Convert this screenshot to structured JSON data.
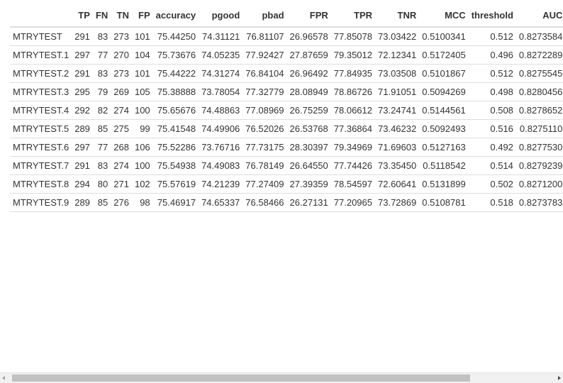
{
  "table": {
    "columns": [
      "",
      "TP",
      "FN",
      "TN",
      "FP",
      "accuracy",
      "pgood",
      "pbad",
      "FPR",
      "TPR",
      "TNR",
      "MCC",
      "threshold",
      "AUC"
    ],
    "rows": [
      {
        "name": "MTRYTEST",
        "TP": "291",
        "FN": "83",
        "TN": "273",
        "FP": "101",
        "accuracy": "75.44250",
        "pgood": "74.31121",
        "pbad": "76.81107",
        "FPR": "26.96578",
        "TPR": "77.85078",
        "TNR": "73.03422",
        "MCC": "0.5100341",
        "threshold": "0.512",
        "AUC": "0.8273584"
      },
      {
        "name": "MTRYTEST.1",
        "TP": "297",
        "FN": "77",
        "TN": "270",
        "FP": "104",
        "accuracy": "75.73676",
        "pgood": "74.05235",
        "pbad": "77.92427",
        "FPR": "27.87659",
        "TPR": "79.35012",
        "TNR": "72.12341",
        "MCC": "0.5172405",
        "threshold": "0.496",
        "AUC": "0.8272289"
      },
      {
        "name": "MTRYTEST.2",
        "TP": "291",
        "FN": "83",
        "TN": "273",
        "FP": "101",
        "accuracy": "75.44222",
        "pgood": "74.31274",
        "pbad": "76.84104",
        "FPR": "26.96492",
        "TPR": "77.84935",
        "TNR": "73.03508",
        "MCC": "0.5101867",
        "threshold": "0.512",
        "AUC": "0.8275545"
      },
      {
        "name": "MTRYTEST.3",
        "TP": "295",
        "FN": "79",
        "TN": "269",
        "FP": "105",
        "accuracy": "75.38888",
        "pgood": "73.78054",
        "pbad": "77.32779",
        "FPR": "28.08949",
        "TPR": "78.86726",
        "TNR": "71.91051",
        "MCC": "0.5094269",
        "threshold": "0.498",
        "AUC": "0.8280456"
      },
      {
        "name": "MTRYTEST.4",
        "TP": "292",
        "FN": "82",
        "TN": "274",
        "FP": "100",
        "accuracy": "75.65676",
        "pgood": "74.48863",
        "pbad": "77.08969",
        "FPR": "26.75259",
        "TPR": "78.06612",
        "TNR": "73.24741",
        "MCC": "0.5144561",
        "threshold": "0.508",
        "AUC": "0.8278652"
      },
      {
        "name": "MTRYTEST.5",
        "TP": "289",
        "FN": "85",
        "TN": "275",
        "FP": "99",
        "accuracy": "75.41548",
        "pgood": "74.49906",
        "pbad": "76.52026",
        "FPR": "26.53768",
        "TPR": "77.36864",
        "TNR": "73.46232",
        "MCC": "0.5092493",
        "threshold": "0.516",
        "AUC": "0.8275110"
      },
      {
        "name": "MTRYTEST.6",
        "TP": "297",
        "FN": "77",
        "TN": "268",
        "FP": "106",
        "accuracy": "75.52286",
        "pgood": "73.76716",
        "pbad": "77.73175",
        "FPR": "28.30397",
        "TPR": "79.34969",
        "TNR": "71.69603",
        "MCC": "0.5127163",
        "threshold": "0.492",
        "AUC": "0.8277530"
      },
      {
        "name": "MTRYTEST.7",
        "TP": "291",
        "FN": "83",
        "TN": "274",
        "FP": "100",
        "accuracy": "75.54938",
        "pgood": "74.49083",
        "pbad": "76.78149",
        "FPR": "26.64550",
        "TPR": "77.74426",
        "TNR": "73.35450",
        "MCC": "0.5118542",
        "threshold": "0.514",
        "AUC": "0.8279239"
      },
      {
        "name": "MTRYTEST.8",
        "TP": "294",
        "FN": "80",
        "TN": "271",
        "FP": "102",
        "accuracy": "75.57619",
        "pgood": "74.21239",
        "pbad": "77.27409",
        "FPR": "27.39359",
        "TPR": "78.54597",
        "TNR": "72.60641",
        "MCC": "0.5131899",
        "threshold": "0.502",
        "AUC": "0.8271200"
      },
      {
        "name": "MTRYTEST.9",
        "TP": "289",
        "FN": "85",
        "TN": "276",
        "FP": "98",
        "accuracy": "75.46917",
        "pgood": "74.65337",
        "pbad": "76.58466",
        "FPR": "26.27131",
        "TPR": "77.20965",
        "TNR": "73.72869",
        "MCC": "0.5108781",
        "threshold": "0.518",
        "AUC": "0.8273783"
      }
    ]
  },
  "scrollbar": {
    "orientation": "horizontal",
    "left_arrow_icon": "chevron-left-icon",
    "right_arrow_icon": "chevron-right-icon"
  },
  "colors": {
    "text": "#333333",
    "row_border": "#dddddd",
    "scrollbar_track": "#f1f1f1",
    "scrollbar_thumb": "#c1c1c1"
  }
}
